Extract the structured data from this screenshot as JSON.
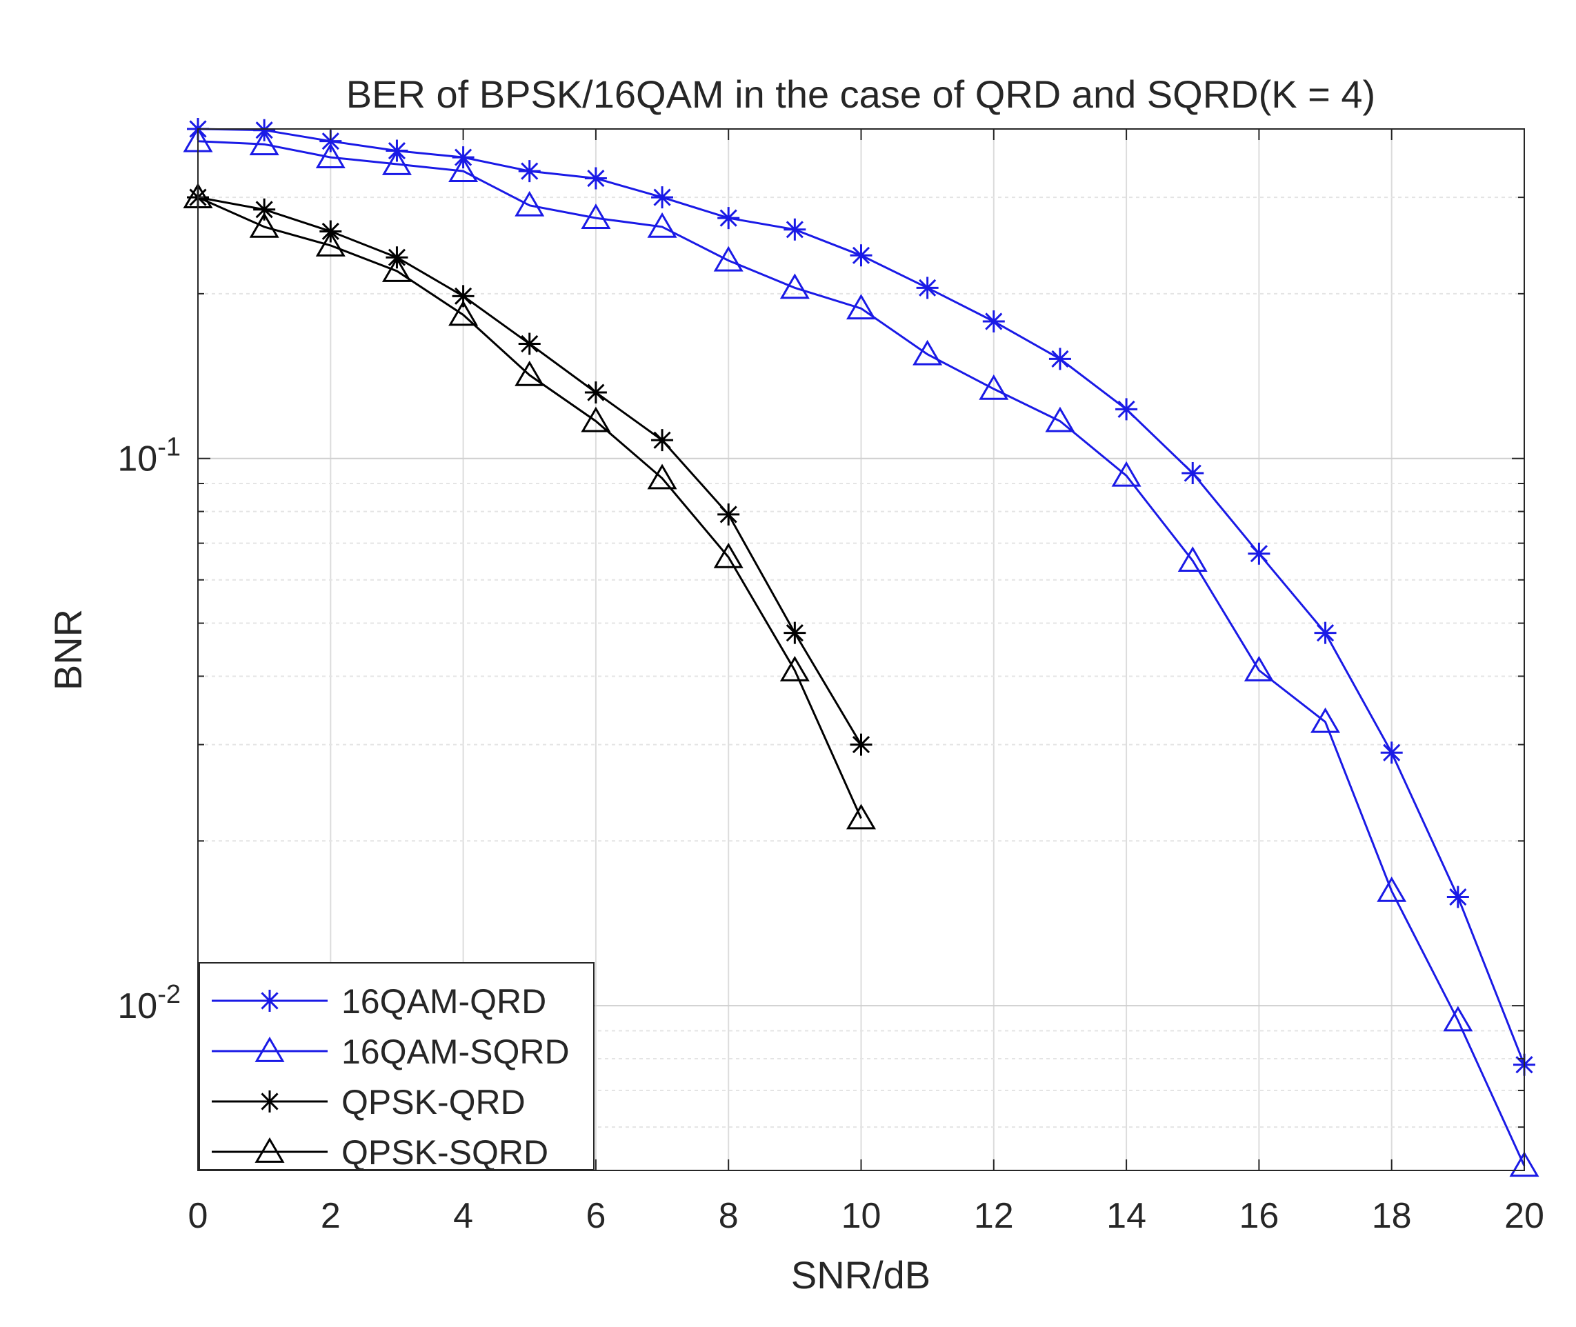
{
  "chart_data": {
    "type": "line",
    "title": "BER of BPSK/16QAM in the case of QRD and SQRD(K = 4)",
    "xlabel": "SNR/dB",
    "ylabel": "BNR",
    "xlim": [
      0,
      20
    ],
    "ylim": [
      0.005,
      0.4
    ],
    "yscale": "log",
    "grid": true,
    "legend_position": "bottom-left",
    "x_ticks": [
      0,
      2,
      4,
      6,
      8,
      10,
      12,
      14,
      16,
      18,
      20
    ],
    "x_tick_labels": [
      "0",
      "2",
      "4",
      "6",
      "8",
      "10",
      "12",
      "14",
      "16",
      "18",
      "20"
    ],
    "y_ticks": [
      0.1,
      0.01
    ],
    "y_tick_labels": [
      {
        "base": "10",
        "exp": "-1"
      },
      {
        "base": "10",
        "exp": "-2"
      }
    ],
    "series": [
      {
        "name": "16QAM-QRD",
        "color": "#1a1ae6",
        "marker": "asterisk",
        "x": [
          0,
          1,
          2,
          3,
          4,
          5,
          6,
          7,
          8,
          9,
          10,
          11,
          12,
          13,
          14,
          15,
          16,
          17,
          18,
          19,
          20
        ],
        "values": [
          0.4,
          0.398,
          0.38,
          0.365,
          0.355,
          0.335,
          0.325,
          0.3,
          0.275,
          0.262,
          0.235,
          0.205,
          0.178,
          0.152,
          0.123,
          0.094,
          0.067,
          0.048,
          0.029,
          0.0158,
          0.0078
        ]
      },
      {
        "name": "16QAM-SQRD",
        "color": "#1a1ae6",
        "marker": "triangle",
        "x": [
          0,
          1,
          2,
          3,
          4,
          5,
          6,
          7,
          8,
          9,
          10,
          11,
          12,
          13,
          14,
          15,
          16,
          17,
          18,
          19,
          20
        ],
        "values": [
          0.38,
          0.375,
          0.355,
          0.345,
          0.335,
          0.29,
          0.275,
          0.265,
          0.23,
          0.205,
          0.188,
          0.155,
          0.134,
          0.117,
          0.093,
          0.065,
          0.041,
          0.033,
          0.0162,
          0.0094,
          0.0051
        ]
      },
      {
        "name": "QPSK-QRD",
        "color": "#000000",
        "marker": "asterisk",
        "x": [
          0,
          1,
          2,
          3,
          4,
          5,
          6,
          7,
          8,
          9,
          10
        ],
        "values": [
          0.3,
          0.285,
          0.26,
          0.233,
          0.198,
          0.162,
          0.132,
          0.108,
          0.079,
          0.048,
          0.03
        ]
      },
      {
        "name": "QPSK-SQRD",
        "color": "#000000",
        "marker": "triangle",
        "x": [
          0,
          1,
          2,
          3,
          4,
          5,
          6,
          7,
          8,
          9,
          10
        ],
        "values": [
          0.3,
          0.265,
          0.245,
          0.22,
          0.183,
          0.142,
          0.117,
          0.092,
          0.066,
          0.041,
          0.022
        ]
      }
    ]
  }
}
